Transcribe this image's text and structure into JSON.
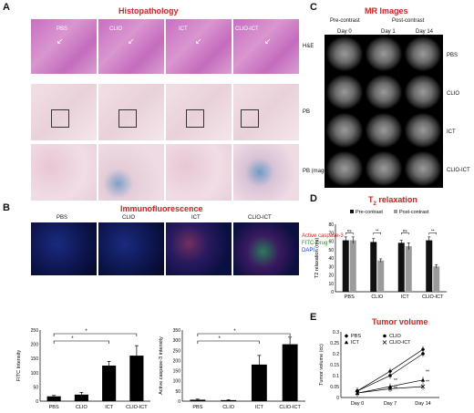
{
  "panels": {
    "A": {
      "letter": "A",
      "title": "Histopathology",
      "cols": [
        "PBS",
        "CLIO",
        "ICT",
        "CLIO-ICT"
      ],
      "rows": [
        "H&E",
        "PB",
        "PB (magnified)"
      ]
    },
    "B": {
      "letter": "B",
      "title": "Immunofluorescence",
      "cols": [
        "PBS",
        "CLIO",
        "ICT",
        "CLIO-ICT"
      ],
      "legend": {
        "caspase": "Active caspase-3",
        "fitc": "FITC-Drug",
        "dapi": "DAPI"
      },
      "legend_colors": {
        "caspase": "#e02020",
        "fitc": "#1a9a1a",
        "dapi": "#2040d0"
      }
    },
    "C": {
      "letter": "C",
      "title": "MR Images",
      "pre": "Pre-contrast",
      "post": "Post-contrast",
      "days": [
        "Day 0",
        "Day 1",
        "Day 14"
      ],
      "rows": [
        "PBS",
        "CLIO",
        "ICT",
        "CLIO-ICT"
      ]
    },
    "D": {
      "letter": "D",
      "title_prefix": "T",
      "title_sub": "2",
      "title_suffix": " relaxation",
      "legend": [
        "Pre-contrast",
        "Post-contrast"
      ]
    },
    "E": {
      "letter": "E",
      "title": "Tumor volume",
      "legend": [
        "PBS",
        "CLIO",
        "ICT",
        "CLIO-ICT"
      ]
    }
  },
  "chart_data": [
    {
      "type": "bar",
      "id": "fitc",
      "categories": [
        "PBS",
        "CLIO",
        "ICT",
        "CLIO-ICT"
      ],
      "values": [
        17,
        23,
        125,
        160
      ],
      "errors": [
        3,
        8,
        15,
        35
      ],
      "ylabel": "FITC Intensity",
      "ylim": [
        0,
        250
      ],
      "yticks": [
        0,
        50,
        100,
        150,
        200,
        250
      ],
      "significance": [
        "*",
        "*"
      ]
    },
    {
      "type": "bar",
      "id": "caspase",
      "categories": [
        "PBS",
        "CLIO",
        "ICT",
        "CLIO-ICT"
      ],
      "values": [
        7,
        5,
        180,
        280
      ],
      "errors": [
        3,
        2,
        45,
        35
      ],
      "ylabel": "Active caspase-3 intensity",
      "ylim": [
        0,
        350
      ],
      "yticks": [
        0,
        50,
        100,
        150,
        200,
        250,
        300,
        350
      ],
      "significance": [
        "*",
        "*"
      ]
    },
    {
      "type": "bar",
      "id": "t2",
      "categories": [
        "PBS",
        "CLIO",
        "ICT",
        "CLIO-ICT"
      ],
      "series": [
        {
          "name": "Pre-contrast",
          "values": [
            61,
            59,
            58,
            61
          ],
          "errors": [
            4,
            4,
            3,
            4
          ],
          "color": "#111111"
        },
        {
          "name": "Post-contrast",
          "values": [
            61,
            37,
            54,
            30
          ],
          "errors": [
            4,
            2,
            4,
            2
          ],
          "color": "#9a9a9a"
        }
      ],
      "ylabel": "T2 relaxation (ms)",
      "ylim": [
        0,
        80
      ],
      "yticks": [
        0,
        10,
        20,
        30,
        40,
        50,
        60,
        70,
        80
      ],
      "significance": [
        "ns",
        "**",
        "ns",
        "**"
      ]
    },
    {
      "type": "line",
      "id": "tumor",
      "categories": [
        "Day 0",
        "Day 7",
        "Day 14"
      ],
      "series": [
        {
          "name": "PBS",
          "values": [
            0.03,
            0.12,
            0.22
          ],
          "marker": "diamond"
        },
        {
          "name": "CLIO",
          "values": [
            0.03,
            0.1,
            0.2
          ],
          "marker": "circle"
        },
        {
          "name": "ICT",
          "values": [
            0.02,
            0.05,
            0.08
          ],
          "marker": "triangle"
        },
        {
          "name": "CLIO-ICT",
          "values": [
            0.02,
            0.04,
            0.05
          ],
          "marker": "x"
        }
      ],
      "ylabel": "Tumor volume (cc)",
      "ylim": [
        0,
        0.3
      ],
      "yticks": [
        0,
        0.05,
        0.1,
        0.15,
        0.2,
        0.25,
        0.3
      ],
      "significance": [
        "**",
        "**",
        "**",
        "**"
      ]
    }
  ]
}
